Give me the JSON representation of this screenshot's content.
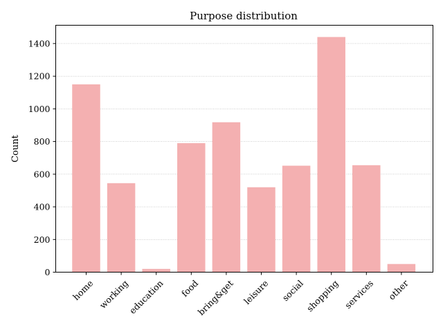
{
  "chart_data": {
    "type": "bar",
    "title": "Purpose distribution",
    "xlabel": "",
    "ylabel": "Count",
    "categories": [
      "home",
      "working",
      "education",
      "food",
      "bring&get",
      "leisure",
      "social",
      "shopping",
      "services",
      "other"
    ],
    "values": [
      1150,
      545,
      20,
      790,
      918,
      520,
      652,
      1440,
      655,
      50
    ],
    "ylim": [
      0,
      1512
    ],
    "yticks": [
      0,
      200,
      400,
      600,
      800,
      1000,
      1200,
      1400
    ],
    "grid": "y-dotted",
    "bar_color": "#f4b0b1",
    "legend": "none"
  }
}
